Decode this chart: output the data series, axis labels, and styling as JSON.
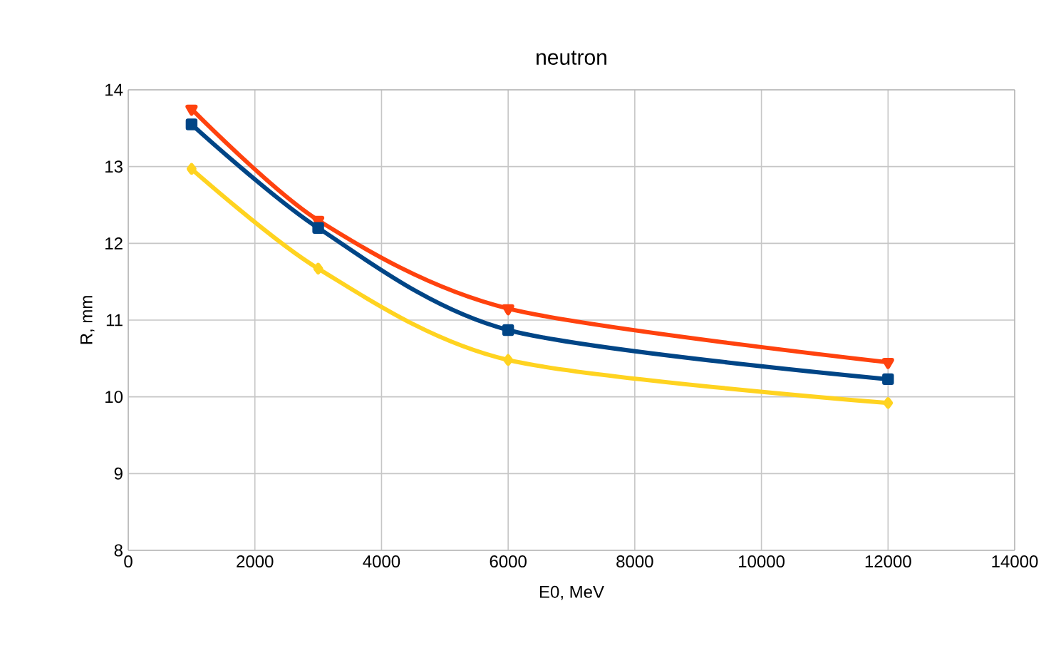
{
  "chart_data": {
    "type": "line",
    "title": "neutron",
    "xlabel": "E0, MeV",
    "ylabel": "R, mm",
    "x": [
      1000,
      3000,
      6000,
      12000
    ],
    "series": [
      {
        "color": "#ff420e",
        "marker": "triangle",
        "values": [
          13.75,
          12.3,
          11.15,
          10.45
        ]
      },
      {
        "color": "#004586",
        "marker": "square",
        "values": [
          13.55,
          12.2,
          10.87,
          10.23
        ]
      },
      {
        "color": "#ffd320",
        "marker": "diamond",
        "values": [
          12.97,
          11.67,
          10.48,
          9.92
        ]
      }
    ],
    "xlim": [
      0,
      14000
    ],
    "ylim": [
      8,
      14
    ],
    "xticks": [
      0,
      2000,
      4000,
      6000,
      8000,
      10000,
      12000,
      14000
    ],
    "yticks": [
      8,
      9,
      10,
      11,
      12,
      13,
      14
    ],
    "grid": true,
    "line_style": "solid"
  }
}
